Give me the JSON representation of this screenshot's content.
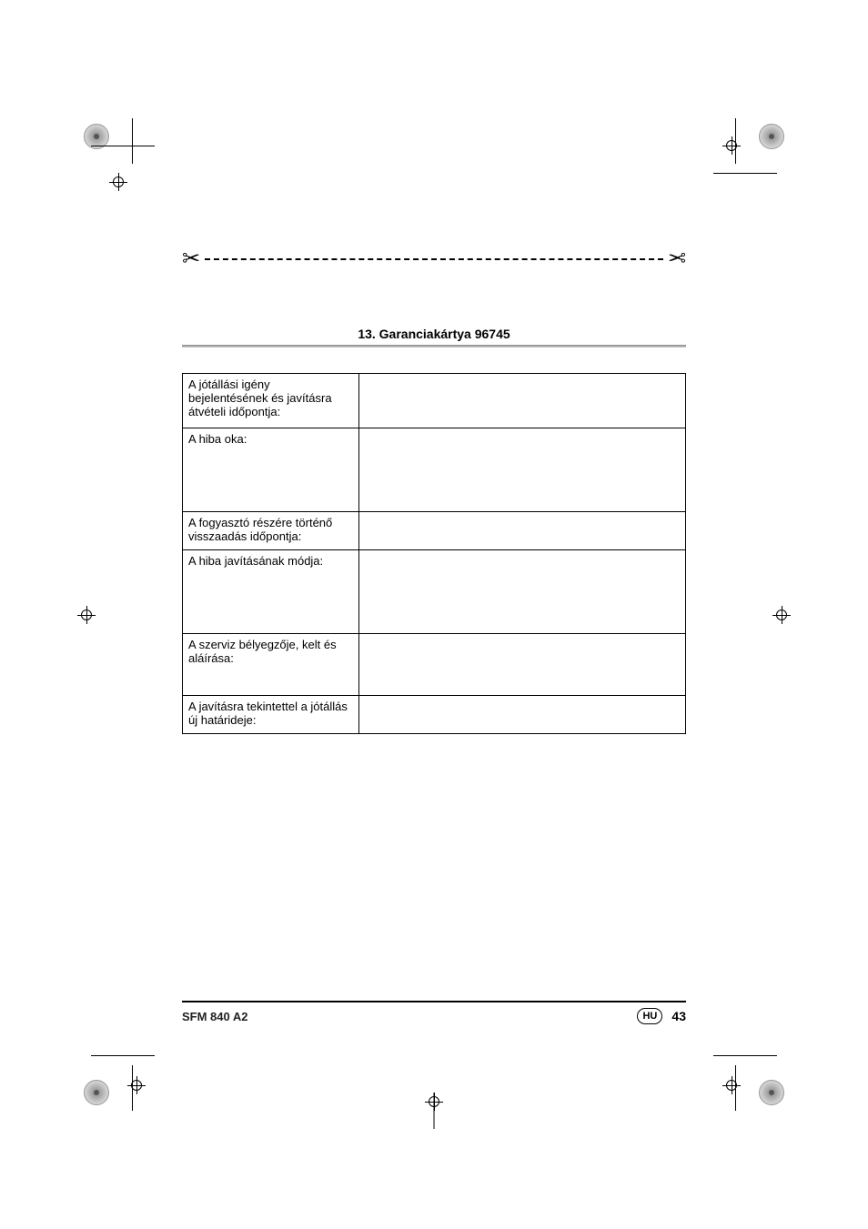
{
  "section": {
    "title": "13. Garanciakártya 96745"
  },
  "table": {
    "rows": [
      {
        "label": "A jótállási igény bejelentésének és javításra átvételi időpontja:",
        "value": "",
        "height_class": "row-h-small"
      },
      {
        "label": "A hiba oka:",
        "value": "",
        "height_class": "row-h-large"
      },
      {
        "label": "A fogyasztó részére történő visszaadás időpontja:",
        "value": "",
        "height_class": "row-h-medium"
      },
      {
        "label": "A hiba javításának módja:",
        "value": "",
        "height_class": "row-h-large"
      },
      {
        "label": "A szerviz bélyegzője, kelt és aláírása:",
        "value": "",
        "height_class": "row-h-xlarge"
      },
      {
        "label": "A javításra tekintettel a jótállás új határideje:",
        "value": "",
        "height_class": "row-h-medium"
      }
    ]
  },
  "footer": {
    "model": "SFM 840 A2",
    "country_code": "HU",
    "page_number": "43"
  },
  "colors": {
    "text": "#000000",
    "background": "#ffffff",
    "underline_gradient_start": "#888888",
    "underline_gradient_end": "#cccccc"
  }
}
